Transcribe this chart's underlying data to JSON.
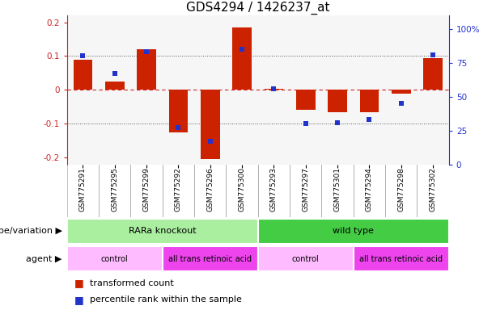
{
  "title": "GDS4294 / 1426237_at",
  "samples": [
    "GSM775291",
    "GSM775295",
    "GSM775299",
    "GSM775292",
    "GSM775296",
    "GSM775300",
    "GSM775293",
    "GSM775297",
    "GSM775301",
    "GSM775294",
    "GSM775298",
    "GSM775302"
  ],
  "bar_values": [
    0.09,
    0.025,
    0.12,
    -0.125,
    -0.205,
    0.185,
    0.003,
    -0.06,
    -0.065,
    -0.065,
    -0.01,
    0.095
  ],
  "blue_percentiles": [
    75,
    62,
    78,
    22,
    12,
    80,
    51,
    25,
    26,
    28,
    40,
    76
  ],
  "bar_color": "#cc2200",
  "blue_color": "#2233cc",
  "ylim_left": [
    -0.22,
    0.22
  ],
  "ylim_right": [
    0,
    110
  ],
  "yticks_left": [
    -0.2,
    -0.1,
    0.0,
    0.1,
    0.2
  ],
  "ytick_labels_left": [
    "-0.2",
    "-0.1",
    "0",
    "0.1",
    "0.2"
  ],
  "yticks_right": [
    0,
    25,
    50,
    75,
    100
  ],
  "ytick_labels_right": [
    "0",
    "25",
    "50",
    "75",
    "100%"
  ],
  "hlines_dotted": [
    -0.1,
    0.1
  ],
  "hline_dashed": 0.0,
  "zero_line_color": "#cc2222",
  "dotted_line_color": "#555555",
  "genotype_groups": [
    {
      "label": "RARa knockout",
      "start": 0,
      "end": 6,
      "color": "#aaeea0"
    },
    {
      "label": "wild type",
      "start": 6,
      "end": 12,
      "color": "#44cc44"
    }
  ],
  "agent_groups": [
    {
      "label": "control",
      "start": 0,
      "end": 3,
      "color": "#ffbbff"
    },
    {
      "label": "all trans retinoic acid",
      "start": 3,
      "end": 6,
      "color": "#ee44ee"
    },
    {
      "label": "control",
      "start": 6,
      "end": 9,
      "color": "#ffbbff"
    },
    {
      "label": "all trans retinoic acid",
      "start": 9,
      "end": 12,
      "color": "#ee44ee"
    }
  ],
  "legend_items": [
    {
      "label": "transformed count",
      "color": "#cc2200"
    },
    {
      "label": "percentile rank within the sample",
      "color": "#2233cc"
    }
  ],
  "title_fontsize": 11,
  "tick_fontsize": 7.5,
  "sample_fontsize": 6.5,
  "row_label_fontsize": 8,
  "row_text_fontsize": 8,
  "legend_fontsize": 8
}
